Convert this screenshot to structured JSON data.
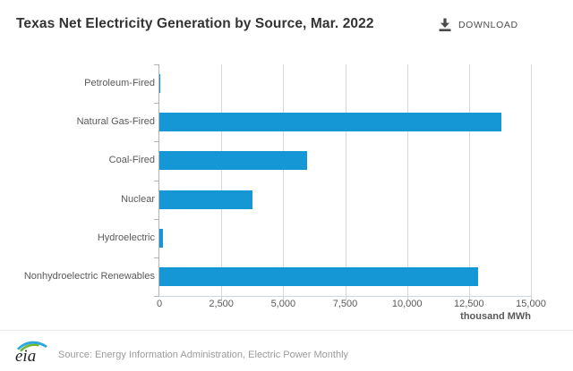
{
  "header": {
    "title": "Texas Net Electricity Generation by Source, Mar. 2022",
    "download_label": "DOWNLOAD"
  },
  "chart_data": {
    "type": "bar",
    "orientation": "horizontal",
    "title": "Texas Net Electricity Generation by Source, Mar. 2022",
    "categories": [
      "Petroleum-Fired",
      "Natural Gas-Fired",
      "Coal-Fired",
      "Nuclear",
      "Hydroelectric",
      "Nonhydroelectric Renewables"
    ],
    "values": [
      20,
      13800,
      5950,
      3775,
      160,
      12850
    ],
    "xlim": [
      0,
      15000
    ],
    "x_ticks": [
      0,
      2500,
      5000,
      7500,
      10000,
      12500,
      15000
    ],
    "x_tick_labels": [
      "0",
      "2,500",
      "5,000",
      "7,500",
      "10,000",
      "12,500",
      "15,000"
    ],
    "axis_label": "thousand MWh",
    "bar_color": "#1597d5",
    "gridline_color": "#d8d8d8",
    "axis_color": "#b3b3b3",
    "label_color": "#595959",
    "grid": true,
    "legend": false
  },
  "footer": {
    "logo_text": "eia",
    "source": "Source: Energy Information Administration, Electric Power Monthly"
  }
}
